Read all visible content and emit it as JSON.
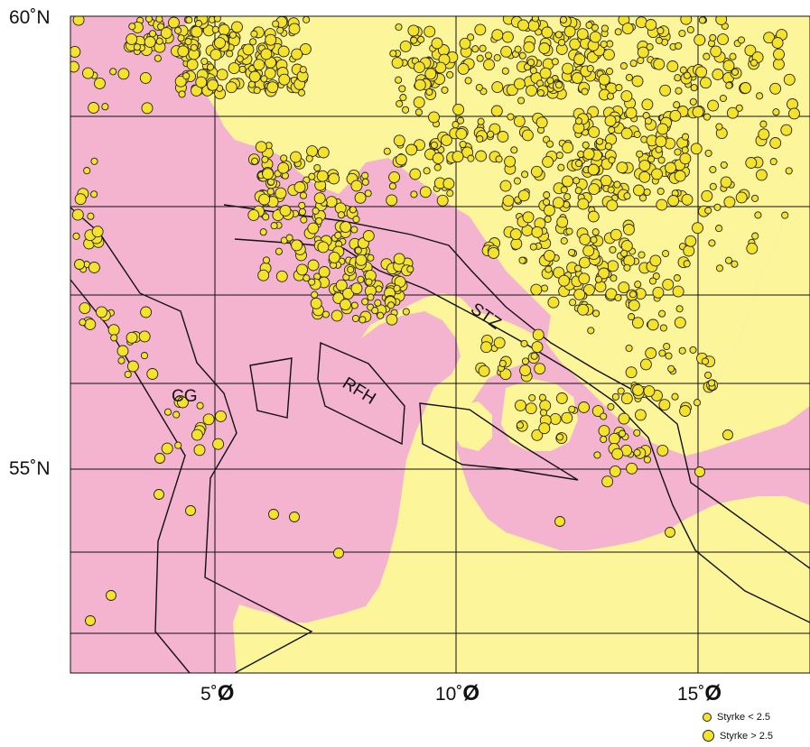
{
  "colors": {
    "sea": "#f4b3cf",
    "land": "#fdf59a",
    "quake_fill": "#f5e22a",
    "quake_stroke": "#222222",
    "grid": "#111111",
    "zone_line": "#111111"
  },
  "axes": {
    "lat_labels": [
      {
        "lat": 60,
        "text": "60˚N"
      },
      {
        "lat": 55,
        "text": "55˚N"
      }
    ],
    "lon_labels": [
      {
        "lon": 5,
        "deg": "5˚",
        "dir": "Ø"
      },
      {
        "lon": 10,
        "deg": "10˚",
        "dir": "Ø"
      },
      {
        "lon": 15,
        "deg": "15˚",
        "dir": "Ø"
      }
    ]
  },
  "zones": [
    {
      "name": "CG"
    },
    {
      "name": "RFH"
    },
    {
      "name": "STZ"
    }
  ],
  "legend": [
    {
      "label": "Styrke < 2.5",
      "size": "small",
      "icon": "small-quake-circle"
    },
    {
      "label": "Styrke > 2.5",
      "size": "large",
      "icon": "large-quake-circle"
    }
  ]
}
